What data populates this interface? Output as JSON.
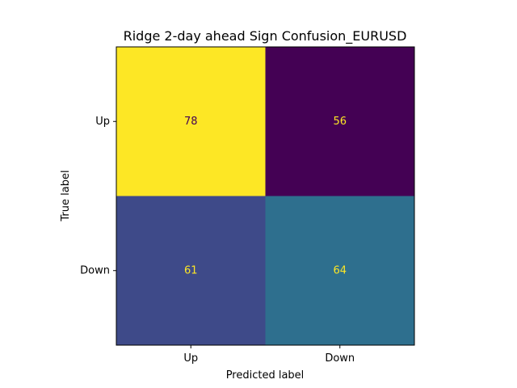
{
  "chart_data": {
    "type": "heatmap",
    "title": "Ridge 2-day ahead Sign Confusion_EURUSD",
    "xlabel": "Predicted label",
    "ylabel": "True label",
    "x_categories": [
      "Up",
      "Down"
    ],
    "y_categories": [
      "Up",
      "Down"
    ],
    "values": [
      [
        78,
        56
      ],
      [
        61,
        64
      ]
    ],
    "colormap": "viridis",
    "cell_colors": [
      [
        "#fde725",
        "#440154"
      ],
      [
        "#3e4a89",
        "#2e6f8e"
      ]
    ],
    "cell_text_colors": [
      [
        "#440154",
        "#fde725"
      ],
      [
        "#fde725",
        "#fde725"
      ]
    ],
    "grid": false,
    "legend": "none"
  }
}
